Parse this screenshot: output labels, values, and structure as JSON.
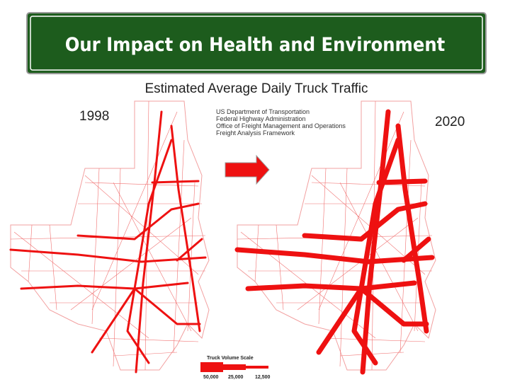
{
  "header": {
    "title": "Our Impact on Health and Environment",
    "subtitle": "Estimated Average Daily Truck Traffic"
  },
  "maps": [
    {
      "year": "1998"
    },
    {
      "year": "2020"
    }
  ],
  "source": [
    "US Department of Transportation",
    "Federal Highway Administration",
    "Office of Freight Management and Operations",
    "Freight Analysis Framework"
  ],
  "legend": {
    "title": "Truck Volume Scale",
    "labels": [
      "50,000",
      "25,000",
      "12,500"
    ]
  }
}
